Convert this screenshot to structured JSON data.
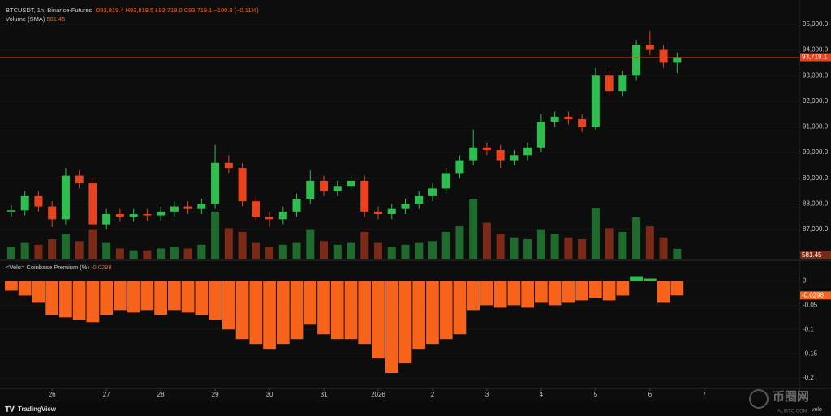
{
  "header": {
    "symbol": "BTCUSDT, 1h, Binance-Futures",
    "ohlc": "O93,819.4 H93,819.5 L93,719.0 C93,719.1 −100.3 (−0.11%)",
    "volume_title": "Volume (SMA)",
    "volume_value": "581.45",
    "premium_title": "<Velo> Coinbase Premium (%)",
    "premium_value": "-0.0298",
    "brand": "TradingView",
    "watermark": "币圈网",
    "watermark_sub": "ALIBTC.COM",
    "velo": "velo"
  },
  "chart_data": [
    {
      "type": "candlestick",
      "up_color": "#2ebd4f",
      "down_color": "#e8431e",
      "x": [
        -18,
        -12,
        -6,
        0,
        6,
        12,
        18,
        24,
        30,
        36,
        42,
        48,
        54,
        60,
        66,
        72,
        78,
        84,
        90,
        96,
        102,
        108,
        114,
        120,
        126,
        132,
        138,
        144,
        150,
        156,
        162,
        168,
        174,
        180,
        186,
        192,
        198,
        204,
        210,
        216,
        222,
        228,
        234,
        240,
        246,
        252,
        258,
        264,
        270,
        276
      ],
      "open": [
        87700,
        87750,
        88300,
        87900,
        87400,
        89100,
        88800,
        87200,
        87600,
        87500,
        87600,
        87550,
        87700,
        87900,
        87800,
        88000,
        89600,
        89400,
        88100,
        87500,
        87400,
        87700,
        88200,
        88900,
        88500,
        88700,
        88900,
        87700,
        87600,
        87800,
        88000,
        88300,
        88600,
        89200,
        89700,
        90200,
        90100,
        89700,
        89900,
        90200,
        91200,
        91400,
        91300,
        91000,
        93000,
        92400,
        93000,
        94200,
        94000,
        93500
      ],
      "high": [
        87950,
        88500,
        88500,
        88100,
        89400,
        89300,
        89000,
        87800,
        87800,
        87800,
        87800,
        87900,
        88100,
        88100,
        88200,
        90300,
        89900,
        89600,
        88300,
        87700,
        87900,
        88400,
        89300,
        89100,
        88900,
        89100,
        89100,
        87900,
        88000,
        88200,
        88500,
        88800,
        89400,
        89900,
        90900,
        90400,
        90300,
        90100,
        90400,
        91500,
        91600,
        91600,
        91500,
        93300,
        93200,
        93200,
        94400,
        94750,
        94200,
        93900
      ],
      "low": [
        87500,
        87550,
        87700,
        87100,
        87200,
        88600,
        86900,
        87000,
        87300,
        87300,
        87350,
        87350,
        87500,
        87600,
        87600,
        87800,
        89200,
        87900,
        87300,
        87100,
        87200,
        87500,
        88000,
        88300,
        88300,
        88500,
        87500,
        87400,
        87400,
        87600,
        87800,
        88100,
        88400,
        89000,
        89500,
        89900,
        89400,
        89500,
        89700,
        90000,
        91000,
        91100,
        90800,
        90900,
        92200,
        92200,
        92800,
        93800,
        93300,
        93100
      ],
      "close": [
        87750,
        88300,
        87900,
        87400,
        89100,
        88800,
        87200,
        87600,
        87500,
        87600,
        87550,
        87700,
        87900,
        87800,
        88000,
        89600,
        89400,
        88100,
        87500,
        87400,
        87700,
        88200,
        88900,
        88500,
        88700,
        88900,
        87700,
        87600,
        87800,
        88000,
        88300,
        88600,
        89200,
        89700,
        90200,
        90100,
        89700,
        89900,
        90200,
        91200,
        91400,
        91300,
        91000,
        93000,
        92400,
        93000,
        94200,
        94000,
        93500,
        93719.1
      ],
      "volume": {
        "name": "Volume",
        "up_color": "#1f6b2e",
        "down_color": "#7a2a16",
        "values": [
          700,
          900,
          800,
          1100,
          1400,
          1000,
          1600,
          900,
          600,
          500,
          500,
          600,
          700,
          600,
          800,
          2600,
          1700,
          1500,
          900,
          700,
          800,
          900,
          1600,
          1000,
          800,
          900,
          1500,
          900,
          700,
          800,
          900,
          1000,
          1500,
          1800,
          3300,
          2000,
          1400,
          1200,
          1100,
          1600,
          1400,
          1200,
          1100,
          2800,
          1700,
          1500,
          2300,
          1800,
          1200,
          581.45
        ]
      },
      "xlim": [
        -23,
        330
      ],
      "ylim": [
        85830,
        95790
      ],
      "yticks": [
        {
          "value": 87000,
          "label": "87,000.0"
        },
        {
          "value": 88000,
          "label": "88,000.0"
        },
        {
          "value": 89000,
          "label": "89,000.0"
        },
        {
          "value": 90000,
          "label": "90,000.0"
        },
        {
          "value": 91000,
          "label": "91,000.0"
        },
        {
          "value": 92000,
          "label": "92,000.0"
        },
        {
          "value": 93000,
          "label": "93,000.0"
        },
        {
          "value": 94000,
          "label": "94,000.0"
        },
        {
          "value": 95000,
          "label": "95,000.0"
        }
      ],
      "last_value": {
        "value": 93719.1,
        "label": "93,719.1"
      },
      "last_color": "#e8431e"
    },
    {
      "type": "bar",
      "color": "#f7631b",
      "positive_color": "#2ebd4f",
      "x": [
        -18,
        -12,
        -6,
        0,
        6,
        12,
        18,
        24,
        30,
        36,
        42,
        48,
        54,
        60,
        66,
        72,
        78,
        84,
        90,
        96,
        102,
        108,
        114,
        120,
        126,
        132,
        138,
        144,
        150,
        156,
        162,
        168,
        174,
        180,
        186,
        192,
        198,
        204,
        210,
        216,
        222,
        228,
        234,
        240,
        246,
        252,
        258,
        264,
        270,
        276
      ],
      "values": [
        -0.02,
        -0.03,
        -0.045,
        -0.07,
        -0.075,
        -0.08,
        -0.085,
        -0.07,
        -0.06,
        -0.065,
        -0.06,
        -0.07,
        -0.06,
        -0.065,
        -0.07,
        -0.08,
        -0.1,
        -0.12,
        -0.13,
        -0.14,
        -0.13,
        -0.12,
        -0.09,
        -0.11,
        -0.12,
        -0.12,
        -0.13,
        -0.16,
        -0.19,
        -0.17,
        -0.14,
        -0.13,
        -0.12,
        -0.11,
        -0.06,
        -0.05,
        -0.055,
        -0.05,
        -0.055,
        -0.045,
        -0.05,
        -0.045,
        -0.04,
        -0.035,
        -0.04,
        -0.03,
        0.01,
        0.005,
        -0.045,
        -0.0298
      ],
      "xlim": [
        -23,
        330
      ],
      "ylim": [
        -0.22,
        0.041
      ],
      "yticks": [
        0,
        -0.05,
        -0.1,
        -0.15,
        -0.2
      ],
      "xticks": [
        {
          "value": 0,
          "label": "26"
        },
        {
          "value": 24,
          "label": "27"
        },
        {
          "value": 48,
          "label": "28"
        },
        {
          "value": 72,
          "label": "29"
        },
        {
          "value": 96,
          "label": "30"
        },
        {
          "value": 120,
          "label": "31"
        },
        {
          "value": 144,
          "label": "2026"
        },
        {
          "value": 168,
          "label": "2"
        },
        {
          "value": 192,
          "label": "3"
        },
        {
          "value": 216,
          "label": "4"
        },
        {
          "value": 240,
          "label": "5"
        },
        {
          "value": 264,
          "label": "6"
        },
        {
          "value": 288,
          "label": "7"
        }
      ]
    }
  ]
}
